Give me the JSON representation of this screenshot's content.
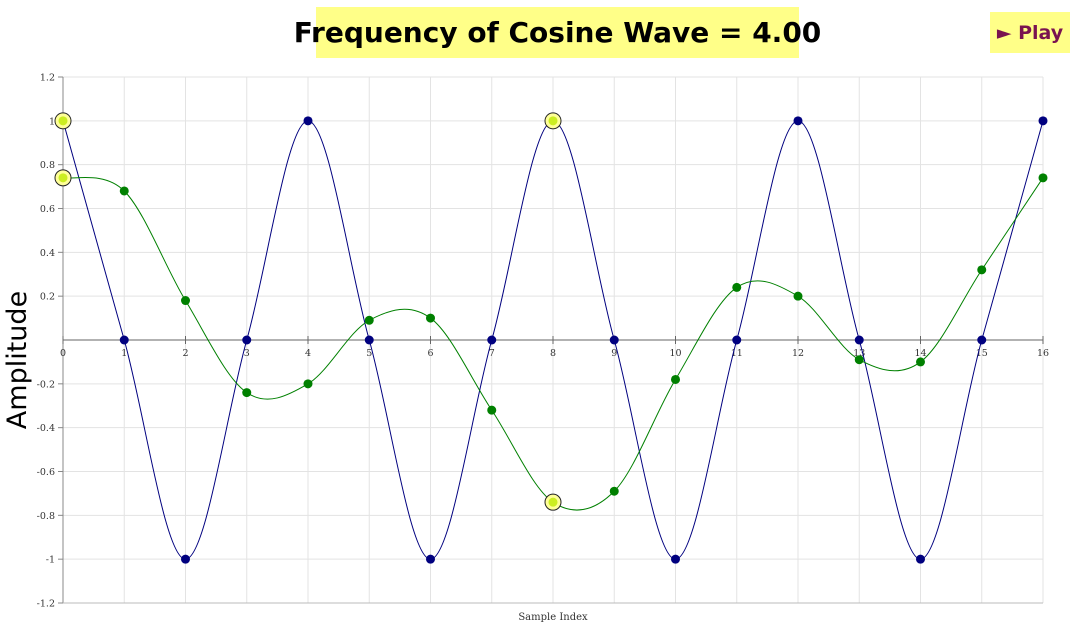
{
  "header": {
    "title": "Frequency of Cosine Wave = 4.00",
    "play_label": "► Play"
  },
  "colors": {
    "blue_series": "#00007f",
    "green_series": "#008000",
    "highlight_fill": "#ccee22",
    "highlight_ring": "#222222",
    "button_bg": "#ffff88",
    "play_text": "#7a1350"
  },
  "chart_data": {
    "type": "line",
    "xlabel": "Sample Index",
    "ylabel": "Amplitude",
    "xlim": [
      0,
      16
    ],
    "ylim": [
      -1.2,
      1.2
    ],
    "x_ticks": [
      0,
      1,
      2,
      3,
      4,
      5,
      6,
      7,
      8,
      9,
      10,
      11,
      12,
      13,
      14,
      15,
      16
    ],
    "y_ticks": [
      "1.2",
      "1",
      "0.8",
      "0.6",
      "0.4",
      "0.2",
      "-0.2",
      "-0.4",
      "-0.6",
      "-0.8",
      "-1",
      "-1.2"
    ],
    "grid": true,
    "series": [
      {
        "color": "#00007f",
        "x": [
          0,
          1,
          2,
          3,
          4,
          5,
          6,
          7,
          8,
          9,
          10,
          11,
          12,
          13,
          14,
          15,
          16
        ],
        "values": [
          1,
          0,
          -1,
          0,
          1,
          0,
          -1,
          0,
          1,
          0,
          -1,
          0,
          1,
          0,
          -1,
          0,
          1
        ]
      },
      {
        "color": "#008000",
        "x": [
          0,
          1,
          2,
          3,
          4,
          5,
          6,
          7,
          8,
          9,
          10,
          11,
          12,
          13,
          14,
          15,
          16
        ],
        "values": [
          0.74,
          0.68,
          0.18,
          -0.24,
          -0.2,
          0.09,
          0.1,
          -0.32,
          -0.74,
          -0.69,
          -0.18,
          0.24,
          0.2,
          -0.09,
          -0.1,
          0.32,
          0.74
        ]
      }
    ],
    "highlighted_points": [
      {
        "x": 0,
        "y": 1
      },
      {
        "x": 0,
        "y": 0.74
      },
      {
        "x": 8,
        "y": 1
      },
      {
        "x": 8,
        "y": -0.74
      }
    ]
  }
}
